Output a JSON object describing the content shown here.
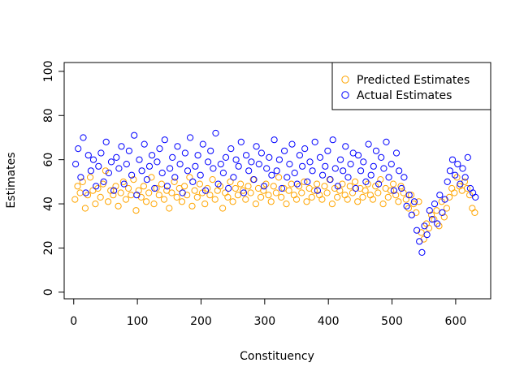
{
  "chart_data": {
    "type": "scatter",
    "title": "",
    "xlabel": "Constituency",
    "ylabel": "Estimates",
    "xlim": [
      -15,
      655
    ],
    "ylim": [
      -3,
      104
    ],
    "xticks": [
      0,
      100,
      200,
      300,
      400,
      500,
      600
    ],
    "yticks": [
      0,
      20,
      40,
      60,
      80,
      100
    ],
    "grid": false,
    "legend_position": "top-right",
    "series": [
      {
        "name": "Predicted Estimates",
        "color": "#FFA500",
        "x": [
          2,
          6,
          10,
          14,
          18,
          22,
          26,
          30,
          34,
          38,
          42,
          46,
          50,
          54,
          58,
          62,
          66,
          70,
          74,
          78,
          82,
          86,
          90,
          94,
          98,
          102,
          106,
          110,
          114,
          118,
          122,
          126,
          130,
          134,
          138,
          142,
          146,
          150,
          154,
          158,
          162,
          166,
          170,
          174,
          178,
          182,
          186,
          190,
          194,
          198,
          202,
          206,
          210,
          214,
          218,
          222,
          226,
          230,
          234,
          238,
          242,
          246,
          250,
          254,
          258,
          262,
          266,
          270,
          274,
          278,
          282,
          286,
          290,
          294,
          298,
          302,
          306,
          310,
          314,
          318,
          322,
          326,
          330,
          334,
          338,
          342,
          346,
          350,
          354,
          358,
          362,
          366,
          370,
          374,
          378,
          382,
          386,
          390,
          394,
          398,
          402,
          406,
          410,
          414,
          418,
          422,
          426,
          430,
          434,
          438,
          442,
          446,
          450,
          454,
          458,
          462,
          466,
          470,
          474,
          478,
          482,
          486,
          490,
          494,
          498,
          502,
          506,
          510,
          514,
          518,
          522,
          526,
          530,
          534,
          538,
          542,
          546,
          550,
          554,
          558,
          562,
          566,
          570,
          574,
          578,
          582,
          586,
          590,
          594,
          598,
          602,
          606,
          610,
          614,
          618,
          622,
          626,
          630
        ],
        "y": [
          42,
          48,
          45,
          50,
          38,
          44,
          52,
          46,
          40,
          47,
          43,
          49,
          55,
          41,
          46,
          44,
          48,
          39,
          45,
          50,
          42,
          47,
          44,
          51,
          37,
          46,
          43,
          48,
          41,
          45,
          52,
          40,
          47,
          44,
          49,
          42,
          46,
          38,
          45,
          50,
          43,
          47,
          41,
          48,
          44,
          52,
          39,
          46,
          43,
          49,
          45,
          40,
          47,
          44,
          51,
          42,
          46,
          48,
          38,
          45,
          43,
          50,
          41,
          47,
          44,
          49,
          46,
          42,
          48,
          45,
          51,
          40,
          47,
          43,
          46,
          49,
          44,
          41,
          48,
          45,
          52,
          43,
          47,
          40,
          46,
          49,
          44,
          42,
          48,
          45,
          50,
          41,
          47,
          43,
          46,
          49,
          44,
          42,
          48,
          45,
          51,
          40,
          47,
          43,
          46,
          49,
          44,
          42,
          48,
          45,
          50,
          41,
          47,
          43,
          46,
          49,
          44,
          42,
          48,
          45,
          51,
          40,
          47,
          43,
          46,
          49,
          44,
          41,
          48,
          45,
          42,
          38,
          44,
          40,
          36,
          41,
          27,
          24,
          31,
          29,
          35,
          33,
          37,
          30,
          41,
          34,
          38,
          43,
          47,
          45,
          52,
          48,
          46,
          50,
          47,
          44,
          38,
          36
        ]
      },
      {
        "name": "Actual Estimates",
        "color": "#0000FF",
        "x": [
          3,
          7,
          11,
          15,
          19,
          23,
          27,
          31,
          35,
          39,
          43,
          47,
          51,
          55,
          59,
          63,
          67,
          71,
          75,
          79,
          83,
          87,
          91,
          95,
          99,
          103,
          107,
          111,
          115,
          119,
          123,
          127,
          131,
          135,
          139,
          143,
          147,
          151,
          155,
          159,
          163,
          167,
          171,
          175,
          179,
          183,
          187,
          191,
          195,
          199,
          203,
          207,
          211,
          215,
          219,
          223,
          227,
          231,
          235,
          239,
          243,
          247,
          251,
          255,
          259,
          263,
          267,
          271,
          275,
          279,
          283,
          287,
          291,
          295,
          299,
          303,
          307,
          311,
          315,
          319,
          323,
          327,
          331,
          335,
          339,
          343,
          347,
          351,
          355,
          359,
          363,
          367,
          371,
          375,
          379,
          383,
          387,
          391,
          395,
          399,
          403,
          407,
          411,
          415,
          419,
          423,
          427,
          431,
          435,
          439,
          443,
          447,
          451,
          455,
          459,
          463,
          467,
          471,
          475,
          479,
          483,
          487,
          491,
          495,
          499,
          503,
          507,
          511,
          515,
          519,
          523,
          527,
          531,
          535,
          539,
          543,
          547,
          551,
          555,
          559,
          563,
          567,
          571,
          575,
          579,
          583,
          587,
          591,
          595,
          599,
          603,
          607,
          611,
          615,
          619,
          623,
          627,
          631
        ],
        "y": [
          58,
          65,
          52,
          70,
          45,
          62,
          55,
          60,
          48,
          57,
          63,
          50,
          68,
          54,
          59,
          46,
          61,
          56,
          66,
          49,
          58,
          64,
          53,
          71,
          44,
          60,
          55,
          67,
          51,
          57,
          62,
          47,
          59,
          65,
          54,
          69,
          48,
          56,
          61,
          52,
          66,
          58,
          45,
          63,
          55,
          70,
          50,
          57,
          62,
          53,
          67,
          46,
          59,
          64,
          56,
          72,
          49,
          58,
          54,
          61,
          47,
          65,
          52,
          60,
          57,
          68,
          45,
          62,
          55,
          59,
          51,
          66,
          58,
          63,
          48,
          56,
          61,
          53,
          69,
          55,
          60,
          47,
          64,
          52,
          58,
          67,
          54,
          49,
          62,
          57,
          65,
          50,
          59,
          55,
          68,
          46,
          61,
          53,
          57,
          64,
          51,
          69,
          56,
          48,
          60,
          55,
          66,
          52,
          58,
          63,
          47,
          62,
          55,
          59,
          50,
          67,
          53,
          57,
          64,
          49,
          61,
          56,
          68,
          52,
          58,
          46,
          63,
          55,
          47,
          52,
          39,
          44,
          35,
          41,
          28,
          23,
          18,
          30,
          26,
          37,
          33,
          40,
          31,
          44,
          36,
          42,
          50,
          55,
          60,
          53,
          58,
          49,
          56,
          52,
          61,
          47,
          45,
          43
        ]
      }
    ]
  }
}
